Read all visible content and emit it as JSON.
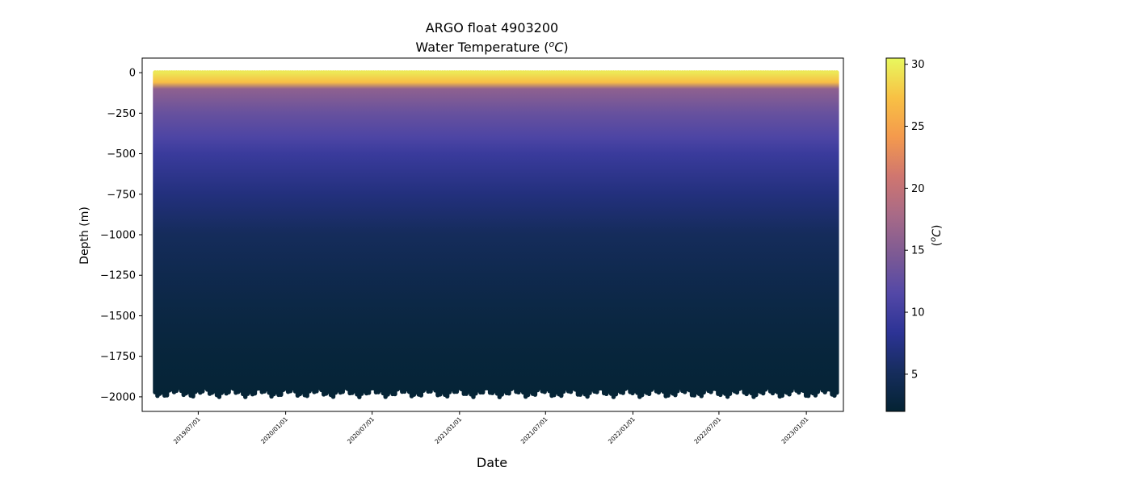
{
  "chart_data": {
    "type": "heatmap",
    "title": "ARGO float 4903200",
    "subtitle_prefix": "Water Temperature (",
    "subtitle_unit_sup": "o",
    "subtitle_unit_base": "C",
    "subtitle_suffix": ")",
    "xlabel": "Date",
    "ylabel": "Depth (m)",
    "x_range": [
      "2019-03-05",
      "2023-03-20"
    ],
    "ylim": [
      -2090,
      90
    ],
    "y_ticks": [
      0,
      -250,
      -500,
      -750,
      -1000,
      -1250,
      -1500,
      -1750,
      -2000
    ],
    "y_tick_labels": [
      "0",
      "−250",
      "−500",
      "−750",
      "−1000",
      "−1250",
      "−1500",
      "−1750",
      "−2000"
    ],
    "x_ticks": [
      "2019-07-01",
      "2020-01-01",
      "2020-07-01",
      "2021-01-01",
      "2021-07-01",
      "2022-01-01",
      "2022-07-01",
      "2023-01-01"
    ],
    "x_tick_labels": [
      "2019/07/01",
      "2020/01/01",
      "2020/07/01",
      "2021/01/01",
      "2021/07/01",
      "2022/01/01",
      "2022/07/01",
      "2023/01/01"
    ],
    "profiles_start": "2019-04-01",
    "profiles_end": "2023-03-10",
    "profile_interval_days": 5,
    "max_depth_range_m": [
      -2000,
      -1940
    ],
    "colorbar": {
      "label_prefix": "(",
      "label_sup": "o",
      "label_base": "C",
      "label_suffix": ")",
      "range": [
        2,
        30.5
      ],
      "ticks": [
        5,
        10,
        15,
        20,
        25,
        30
      ],
      "tick_labels": [
        "5",
        "10",
        "15",
        "20",
        "25",
        "30"
      ],
      "colormap": "thermal"
    },
    "representative_profile": [
      {
        "depth": 0,
        "temp": 29.5
      },
      {
        "depth": -60,
        "temp": 27.0
      },
      {
        "depth": -100,
        "temp": 16.0
      },
      {
        "depth": -250,
        "temp": 13.0
      },
      {
        "depth": -400,
        "temp": 11.0
      },
      {
        "depth": -500,
        "temp": 9.5
      },
      {
        "depth": -750,
        "temp": 7.0
      },
      {
        "depth": -1000,
        "temp": 5.0
      },
      {
        "depth": -1250,
        "temp": 4.0
      },
      {
        "depth": -1500,
        "temp": 3.2
      },
      {
        "depth": -1750,
        "temp": 2.6
      },
      {
        "depth": -2000,
        "temp": 2.2
      }
    ]
  },
  "colors": {
    "cmap_stops": [
      "#042333",
      "#162d5d",
      "#2c3395",
      "#5348a7",
      "#7d5a94",
      "#a86a87",
      "#d0766f",
      "#f49a4d",
      "#f8c144",
      "#e8f85e"
    ]
  }
}
